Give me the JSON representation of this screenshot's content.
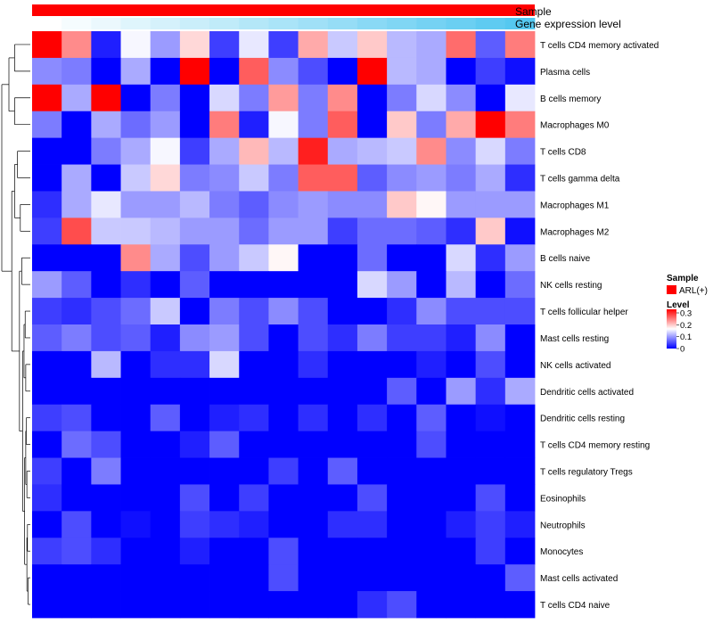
{
  "chart_data": {
    "type": "heatmap",
    "title": "",
    "annotations": {
      "sample": {
        "label": "Sample",
        "value": "ARL(+)",
        "color": "#ff0000"
      },
      "gene_expression": {
        "label": "Gene expression level",
        "gradient_from": "#ffffff",
        "gradient_to": "#55c8f0"
      }
    },
    "legend": {
      "sample_title": "Sample",
      "sample_entry": "ARL(+)",
      "level_title": "Level",
      "ticks": [
        "0.3",
        "0.2",
        "0.1",
        "0"
      ],
      "tick_values": [
        0.3,
        0.2,
        0.1,
        0.0
      ],
      "range": [
        0,
        0.33
      ]
    },
    "colors": {
      "low": "#0000ff",
      "mid": "#ffffff",
      "high": "#ff0000"
    },
    "rows": [
      "T cells CD4 memory activated",
      "Plasma cells",
      "B cells memory",
      "Macrophages M0",
      "T cells CD8",
      "T cells gamma delta",
      "Macrophages M1",
      "Macrophages M2",
      "B cells naive",
      "NK cells resting",
      "T cells follicular helper",
      "Mast cells resting",
      "NK cells activated",
      "Dendritic cells activated",
      "Dendritic cells resting",
      "T cells CD4 memory resting",
      "T cells regulatory  Tregs",
      "Eosinophils",
      "Neutrophils",
      "Monocytes",
      "Mast cells activated",
      "T cells CD4 naive"
    ],
    "values": [
      [
        0.33,
        0.24,
        0.02,
        0.16,
        0.1,
        0.19,
        0.04,
        0.15,
        0.04,
        0.22,
        0.13,
        0.2,
        0.12,
        0.11,
        0.26,
        0.06,
        0.25
      ],
      [
        0.09,
        0.08,
        0.0,
        0.11,
        0.0,
        0.33,
        0.0,
        0.27,
        0.09,
        0.05,
        0.0,
        0.33,
        0.12,
        0.11,
        0.0,
        0.04,
        0.01
      ],
      [
        0.33,
        0.11,
        0.33,
        0.0,
        0.08,
        0.0,
        0.14,
        0.08,
        0.23,
        0.08,
        0.24,
        0.0,
        0.08,
        0.14,
        0.09,
        0.0,
        0.15
      ],
      [
        0.08,
        0.0,
        0.11,
        0.07,
        0.1,
        0.0,
        0.25,
        0.02,
        0.16,
        0.08,
        0.27,
        0.0,
        0.2,
        0.08,
        0.22,
        0.33,
        0.25
      ],
      [
        0.0,
        0.0,
        0.08,
        0.11,
        0.16,
        0.04,
        0.11,
        0.21,
        0.12,
        0.31,
        0.11,
        0.12,
        0.13,
        0.24,
        0.09,
        0.14,
        0.08
      ],
      [
        0.0,
        0.11,
        0.0,
        0.13,
        0.19,
        0.08,
        0.09,
        0.13,
        0.08,
        0.27,
        0.27,
        0.06,
        0.09,
        0.1,
        0.08,
        0.11,
        0.03
      ],
      [
        0.03,
        0.11,
        0.15,
        0.1,
        0.1,
        0.12,
        0.08,
        0.06,
        0.09,
        0.1,
        0.09,
        0.09,
        0.2,
        0.17,
        0.1,
        0.1,
        0.1
      ],
      [
        0.04,
        0.28,
        0.13,
        0.13,
        0.12,
        0.1,
        0.1,
        0.07,
        0.1,
        0.1,
        0.04,
        0.07,
        0.07,
        0.06,
        0.03,
        0.2,
        0.01
      ],
      [
        0.0,
        0.0,
        0.0,
        0.24,
        0.11,
        0.05,
        0.1,
        0.13,
        0.17,
        0.0,
        0.0,
        0.07,
        0.0,
        0.0,
        0.14,
        0.03,
        0.1
      ],
      [
        0.1,
        0.06,
        0.0,
        0.03,
        0.0,
        0.06,
        0.0,
        0.0,
        0.0,
        0.0,
        0.0,
        0.14,
        0.1,
        0.0,
        0.12,
        0.0,
        0.07
      ],
      [
        0.04,
        0.03,
        0.05,
        0.07,
        0.13,
        0.0,
        0.08,
        0.05,
        0.09,
        0.05,
        0.0,
        0.0,
        0.03,
        0.09,
        0.05,
        0.05,
        0.05
      ],
      [
        0.06,
        0.08,
        0.05,
        0.06,
        0.02,
        0.09,
        0.1,
        0.05,
        0.0,
        0.05,
        0.03,
        0.08,
        0.04,
        0.04,
        0.02,
        0.09,
        0.0
      ],
      [
        0.0,
        0.0,
        0.12,
        0.0,
        0.03,
        0.03,
        0.14,
        0.0,
        0.0,
        0.03,
        0.0,
        0.0,
        0.0,
        0.02,
        0.0,
        0.05,
        0.0
      ],
      [
        0.0,
        0.0,
        0.0,
        0.0,
        0.0,
        0.0,
        0.0,
        0.0,
        0.0,
        0.0,
        0.0,
        0.0,
        0.06,
        0.0,
        0.1,
        0.03,
        0.11
      ],
      [
        0.04,
        0.05,
        0.0,
        0.0,
        0.06,
        0.0,
        0.02,
        0.03,
        0.0,
        0.03,
        0.0,
        0.03,
        0.0,
        0.06,
        0.0,
        0.01,
        0.0
      ],
      [
        0.0,
        0.07,
        0.05,
        0.0,
        0.0,
        0.02,
        0.06,
        0.0,
        0.0,
        0.0,
        0.0,
        0.0,
        0.0,
        0.05,
        0.0,
        0.0,
        0.0
      ],
      [
        0.04,
        0.0,
        0.08,
        0.0,
        0.0,
        0.0,
        0.0,
        0.0,
        0.04,
        0.0,
        0.06,
        0.0,
        0.0,
        0.0,
        0.0,
        0.0,
        0.0
      ],
      [
        0.03,
        0.0,
        0.0,
        0.0,
        0.0,
        0.05,
        0.0,
        0.04,
        0.0,
        0.0,
        0.0,
        0.05,
        0.0,
        0.0,
        0.0,
        0.05,
        0.0
      ],
      [
        0.0,
        0.05,
        0.0,
        0.01,
        0.0,
        0.04,
        0.03,
        0.02,
        0.0,
        0.0,
        0.03,
        0.03,
        0.0,
        0.0,
        0.02,
        0.04,
        0.02
      ],
      [
        0.04,
        0.05,
        0.03,
        0.0,
        0.0,
        0.02,
        0.0,
        0.0,
        0.05,
        0.0,
        0.0,
        0.0,
        0.0,
        0.0,
        0.0,
        0.04,
        0.0
      ],
      [
        0.0,
        0.0,
        0.0,
        0.0,
        0.0,
        0.0,
        0.0,
        0.0,
        0.05,
        0.0,
        0.0,
        0.0,
        0.0,
        0.0,
        0.0,
        0.0,
        0.06
      ],
      [
        0.0,
        0.0,
        0.0,
        0.0,
        0.0,
        0.0,
        0.0,
        0.0,
        0.0,
        0.0,
        0.0,
        0.03,
        0.05,
        0.0,
        0.0,
        0.0,
        0.0
      ]
    ],
    "expression_levels": [
      0.0,
      0.06,
      0.12,
      0.19,
      0.25,
      0.31,
      0.37,
      0.44,
      0.5,
      0.56,
      0.62,
      0.69,
      0.75,
      0.81,
      0.87,
      0.94,
      1.0
    ],
    "dendrogram": "rows-left"
  }
}
